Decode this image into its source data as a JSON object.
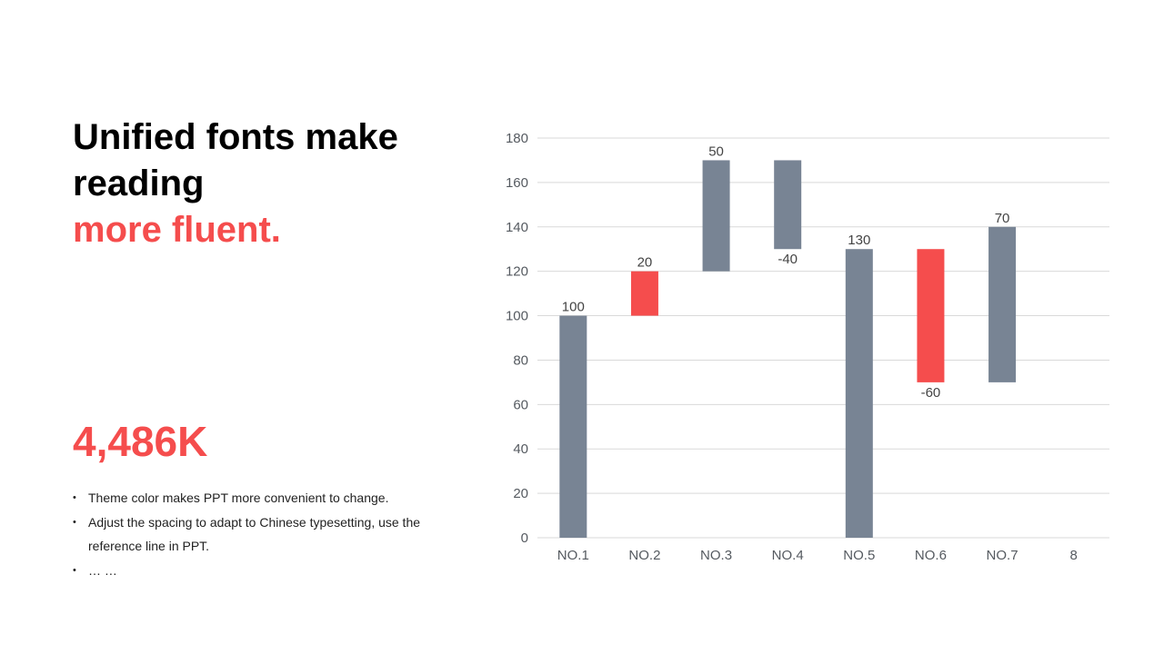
{
  "heading": {
    "line1": "Unified fonts make reading",
    "line2": "more fluent."
  },
  "stat": {
    "value": "4,486K"
  },
  "bullets": [
    "Theme  color makes PPT more convenient to change.",
    "Adjust the spacing to adapt to Chinese typesetting, use the reference line in PPT.",
    "… …"
  ],
  "colors": {
    "accent": "#F54D4D",
    "bar_gray": "#788494",
    "grid": "#d9d9d9"
  },
  "chart_data": {
    "type": "bar",
    "subtype": "waterfall",
    "categories": [
      "NO.1",
      "NO.2",
      "NO.3",
      "NO.4",
      "NO.5",
      "NO.6",
      "NO.7",
      "8"
    ],
    "bars": [
      {
        "category": "NO.1",
        "start": 0,
        "end": 100,
        "label": "100",
        "color": "gray"
      },
      {
        "category": "NO.2",
        "start": 100,
        "end": 120,
        "label": "20",
        "color": "accent"
      },
      {
        "category": "NO.3",
        "start": 120,
        "end": 170,
        "label": "50",
        "color": "gray"
      },
      {
        "category": "NO.4",
        "start": 170,
        "end": 130,
        "label": "-40",
        "color": "gray"
      },
      {
        "category": "NO.5",
        "start": 0,
        "end": 130,
        "label": "130",
        "color": "gray"
      },
      {
        "category": "NO.6",
        "start": 130,
        "end": 70,
        "label": "-60",
        "color": "accent"
      },
      {
        "category": "NO.7",
        "start": 70,
        "end": 140,
        "label": "70",
        "color": "gray"
      }
    ],
    "ylim": [
      0,
      180
    ],
    "yticks": [
      "0",
      "20",
      "40",
      "60",
      "80",
      "100",
      "120",
      "140",
      "160",
      "180"
    ],
    "grid": true,
    "legend": "none",
    "title": "",
    "xlabel": "",
    "ylabel": ""
  }
}
